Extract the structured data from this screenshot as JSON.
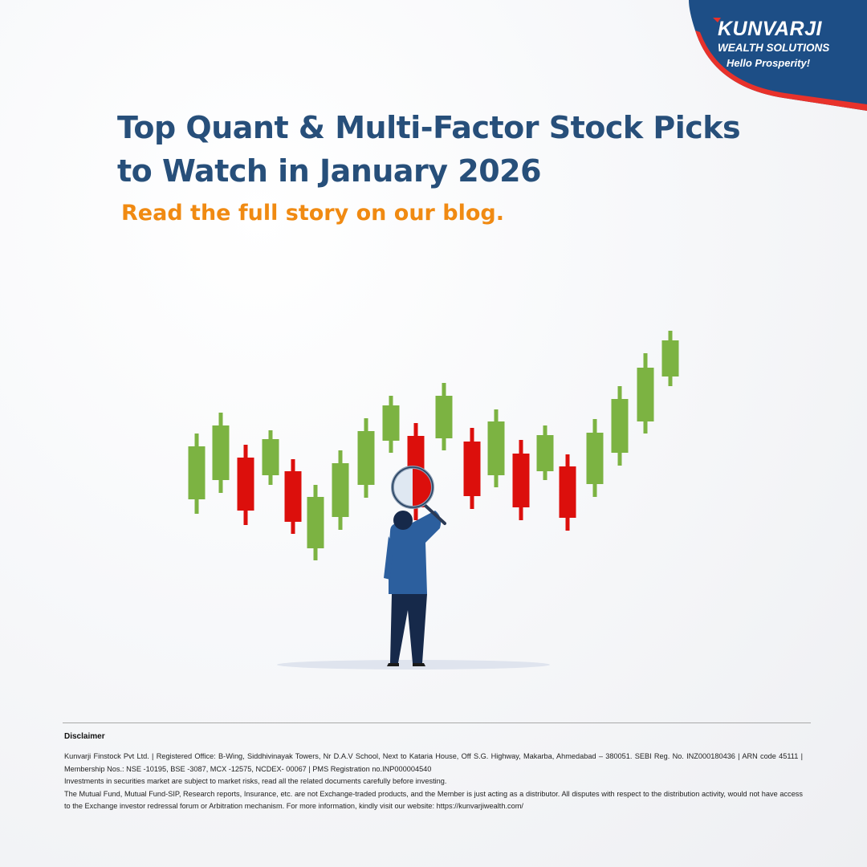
{
  "logo": {
    "brand": "KUNVARJI",
    "line2": "WEALTH SOLUTIONS",
    "tagline": "Hello Prosperity!",
    "colors": {
      "navy": "#1d4e86",
      "red": "#e8322b"
    }
  },
  "headline": {
    "line1": "Top Quant & Multi-Factor Stock Picks",
    "line2": "to Watch in January 2026"
  },
  "cta": "Read the full story on our blog.",
  "illustration": {
    "subject": "businessman-with-magnifying-glass",
    "candle_colors": {
      "up": "#7cb342",
      "down": "#dc0f0c"
    },
    "candles": [
      {
        "dir": "up"
      },
      {
        "dir": "up"
      },
      {
        "dir": "down"
      },
      {
        "dir": "up"
      },
      {
        "dir": "down"
      },
      {
        "dir": "up"
      },
      {
        "dir": "up"
      },
      {
        "dir": "up"
      },
      {
        "dir": "up"
      },
      {
        "dir": "down"
      },
      {
        "dir": "up"
      },
      {
        "dir": "down"
      },
      {
        "dir": "up"
      },
      {
        "dir": "down"
      },
      {
        "dir": "up"
      },
      {
        "dir": "down"
      },
      {
        "dir": "up"
      },
      {
        "dir": "up"
      },
      {
        "dir": "up"
      },
      {
        "dir": "up"
      }
    ]
  },
  "disclaimer": {
    "title": "Disclaimer",
    "line1": "Kunvarji Finstock Pvt Ltd. | Registered Office: B-Wing, Siddhivinayak Towers, Nr D.A.V School, Next to Kataria House, Off S.G. Highway, Makarba, Ahmedabad – 380051. SEBI Reg. No. INZ000180436 | ARN code 45111 | Membership Nos.: NSE -10195, BSE -3087, MCX -12575, NCDEX- 00067 | PMS Registration no.INP000004540",
    "line2": "Investments in securities market are subject to market risks, read all the related documents carefully before investing.",
    "line3": "The Mutual Fund, Mutual Fund-SIP, Research reports, Insurance, etc. are not Exchange-traded products, and the Member is just acting as a distributor. All disputes with respect to the distribution activity, would not have access to the Exchange investor redressal forum or Arbitration mechanism. For more information, kindly visit our website: https://kunvarjiwealth.com/"
  }
}
